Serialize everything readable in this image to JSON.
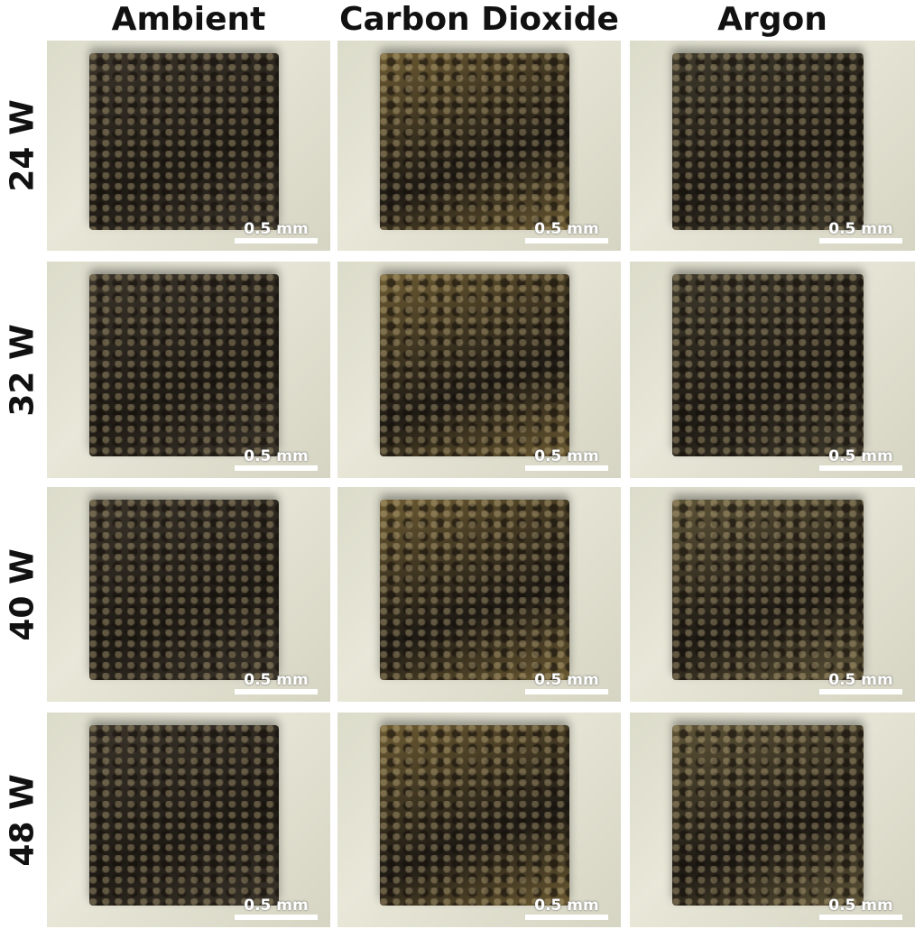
{
  "columns": [
    "Ambient",
    "Carbon Dioxide",
    "Argon"
  ],
  "rows": [
    "24 W",
    "32 W",
    "40 W",
    "48 W"
  ],
  "scale_bar_label": "0.5 mm",
  "sample_colors": {
    "ambient": "#3a342a",
    "carbon_dioxide": "#6b5a32",
    "argon": "#3f3a2c",
    "argon_high_power": "#5e5438"
  }
}
